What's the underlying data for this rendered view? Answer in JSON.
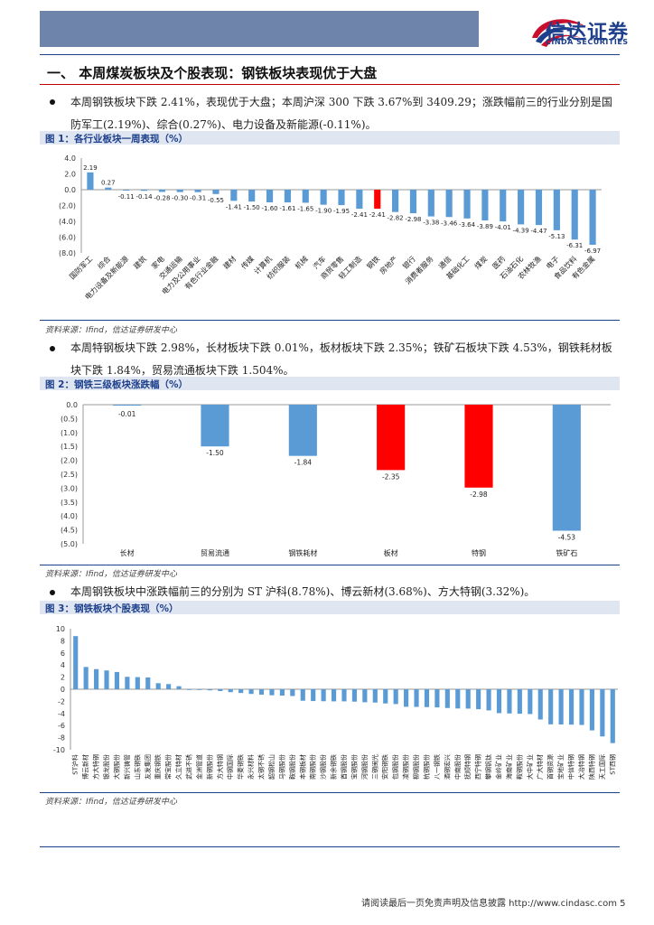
{
  "header": {
    "logo_cn": "信达证券",
    "logo_en": "CINDA SECURITIES",
    "accent": "#1d3f8c",
    "logo_red": "#c8102e"
  },
  "section_title": "一、 本周煤炭板块及个股表现：钢铁板块表现优于大盘",
  "paragraph1": "本周钢铁板块下跌 2.41%，表现优于大盘；本周沪深 300 下跌 3.67%到 3409.29；涨跌幅前三的行业分别是国防军工(2.19%)、综合(0.27%)、电力设备及新能源(-0.11%)。",
  "paragraph2": "本周特钢板块下跌 2.98%，长材板块下跌 0.01%，板材板块下跌 2.35%；铁矿石板块下跌 4.53%，钢铁耗材板块下跌 1.84%，贸易流通板块下跌 1.504%。",
  "paragraph3": "本周钢铁板块中涨跌幅前三的分别为 ST 沪科(8.78%)、博云新材(3.68%)、方大特钢(3.32%)。",
  "figure1_title": "图 1：各行业板块一周表现（%）",
  "figure2_title": "图 2：钢铁三级板块涨跌幅（%）",
  "figure3_title": "图 3：钢铁板块个股表现（%）",
  "source1": "资料来源：Ifind，信达证券研发中心",
  "source2": "资料来源：Ifind，信达证券研发中心",
  "source3": "资料来源：Ifind，信达证券研发中心",
  "footer": "请阅读最后一页免责声明及信息披露 http://www.cindasc.com 5",
  "colors": {
    "bar_blue": "#5b9bd5",
    "bar_red": "#ff0000"
  },
  "chart_data": [
    {
      "type": "bar",
      "title": "各行业板块一周表现（%）",
      "categories": [
        "国防军工",
        "综合",
        "电力设备及新能源",
        "建筑",
        "家电",
        "交通运输",
        "电力及公用事业",
        "有色行业金融",
        "建材",
        "传媒",
        "计算机",
        "纺织服装",
        "机械",
        "汽车",
        "商贸零售",
        "轻工制造",
        "钢铁",
        "房地产",
        "银行",
        "消费者服务",
        "通信",
        "基础化工",
        "煤炭",
        "医药",
        "石油石化",
        "农林牧渔",
        "电子",
        "食品饮料",
        "有色金属"
      ],
      "values": [
        2.19,
        0.27,
        -0.11,
        -0.14,
        -0.28,
        -0.3,
        -0.31,
        -0.55,
        -1.41,
        -1.5,
        -1.6,
        -1.61,
        -1.65,
        -1.9,
        -1.95,
        -2.41,
        -2.41,
        -2.82,
        -2.98,
        -3.38,
        -3.46,
        -3.64,
        -3.89,
        -4.01,
        -4.39,
        -4.47,
        -5.13,
        -6.31,
        -6.97
      ],
      "labels": [
        "2.19",
        "0.27",
        "-0.11",
        "-0.14",
        "-0.28",
        "-0.30",
        "-0.31",
        "-0.55",
        "-1.41",
        "-1.50",
        "-1.60",
        "-1.61",
        "-1.65",
        "-1.90",
        "-1.95",
        "-2.41",
        "-2.41",
        "-2.82",
        "-2.98",
        "-3.38",
        "-3.46",
        "-3.64",
        "-3.89",
        "-4.01",
        "-4.39",
        "-4.47",
        "-5.13",
        "-6.31",
        "-6.97"
      ],
      "highlight_index": 16,
      "yticks": [
        "4.0",
        "2.0",
        "0.0",
        "(2.0)",
        "(4.0)",
        "(6.0)",
        "(8.0)"
      ],
      "ylim": [
        -8,
        4
      ]
    },
    {
      "type": "bar",
      "title": "钢铁三级板块涨跌幅（%）",
      "categories": [
        "长材",
        "贸易流通",
        "钢铁耗材",
        "板材",
        "特钢",
        "铁矿石"
      ],
      "values": [
        -0.01,
        -1.5,
        -1.84,
        -2.35,
        -2.98,
        -4.53
      ],
      "labels": [
        "-0.01",
        "-1.50",
        "-1.84",
        "-2.35",
        "-2.98",
        "-4.53"
      ],
      "bar_colors": [
        "blue",
        "blue",
        "blue",
        "red",
        "red",
        "blue"
      ],
      "yticks": [
        "0.0",
        "(0.5)",
        "(1.0)",
        "(1.5)",
        "(2.0)",
        "(2.5)",
        "(3.0)",
        "(3.5)",
        "(4.0)",
        "(4.5)",
        "(5.0)"
      ],
      "ylim": [
        -5,
        0
      ]
    },
    {
      "type": "bar",
      "title": "钢铁板块个股表现（%）",
      "categories": [
        "ST沪科",
        "博云新材",
        "方大特钢",
        "银龙股份",
        "大钢股份",
        "新兴铸管",
        "山东钢铁",
        "友发集团",
        "重庆钢铁",
        "常宝股份",
        "久立特材",
        "武进不锈",
        "金洲管道",
        "新钢股份",
        "方大特钢",
        "中钢国际",
        "华菱钢铁",
        "永兴材料",
        "太钢不锈",
        "韶钢松山",
        "马钢股份",
        "鞍钢股份",
        "本钢板材",
        "南钢股份",
        "沙钢股份",
        "新余钢铁",
        "首钢股份",
        "宝钢股份",
        "河钢股份",
        "三钢闽光",
        "安阳钢铁",
        "包钢股份",
        "凌钢股份",
        "柳钢股份",
        "杭钢股份",
        "八一钢铁",
        "酒钢宏兴",
        "中南股份",
        "抚顺特钢",
        "西宁特钢",
        "攀钢钒钛",
        "金岭矿业",
        "海南矿业",
        "鞍钢股份",
        "大中矿业",
        "广大特材",
        "首钢资源",
        "宝地矿业",
        "中信特钢",
        "大冶特钢",
        "陕西特钢",
        "天工国际",
        "ST西钢"
      ],
      "values": [
        8.78,
        3.68,
        3.32,
        3.1,
        2.85,
        2.05,
        2.0,
        1.95,
        1.0,
        0.85,
        0.5,
        -0.05,
        -0.12,
        -0.18,
        -0.3,
        -0.48,
        -0.62,
        -0.78,
        -0.9,
        -1.0,
        -1.05,
        -1.12,
        -1.9,
        -1.95,
        -1.98,
        -2.0,
        -2.0,
        -2.05,
        -2.15,
        -2.2,
        -2.35,
        -2.45,
        -2.9,
        -2.92,
        -2.95,
        -3.0,
        -3.1,
        -3.18,
        -3.2,
        -3.3,
        -3.5,
        -3.95,
        -4.0,
        -4.05,
        -4.1,
        -5.0,
        -5.8,
        -5.82,
        -5.85,
        -5.9,
        -6.8,
        -7.8,
        -8.9
      ],
      "yticks": [
        "10",
        "8",
        "6",
        "4",
        "2",
        "0",
        "-2",
        "-4",
        "-6",
        "-8",
        "-10"
      ],
      "ylim": [
        -10,
        10
      ]
    }
  ]
}
